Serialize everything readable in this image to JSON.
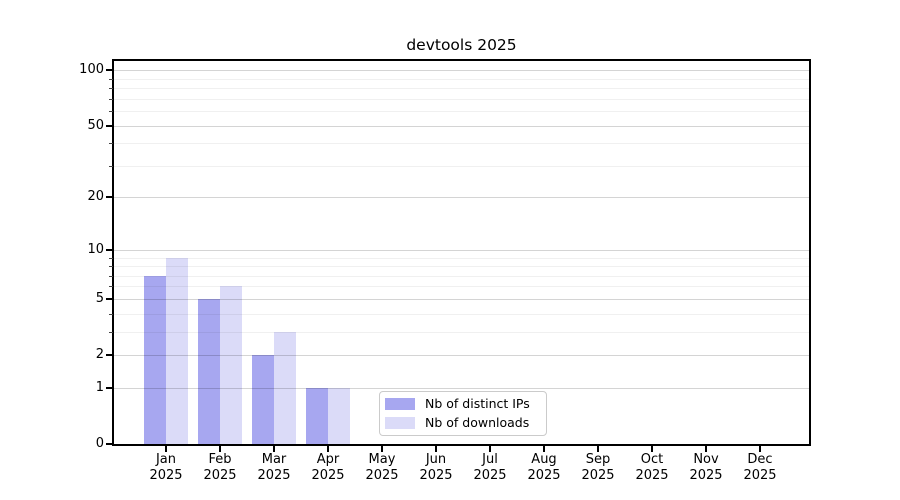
{
  "title": "devtools 2025",
  "chart_data": {
    "type": "bar",
    "title": "devtools 2025",
    "yscale": "log1p",
    "ylim": [
      0,
      113
    ],
    "grid": "horizontal",
    "y_major_ticks": [
      0,
      1,
      2,
      5,
      10,
      20,
      50,
      100
    ],
    "y_minor_gridlines": [
      3,
      4,
      6,
      7,
      8,
      9,
      30,
      40,
      60,
      70,
      80,
      90
    ],
    "categories": [
      {
        "month": "Jan",
        "year": "2025"
      },
      {
        "month": "Feb",
        "year": "2025"
      },
      {
        "month": "Mar",
        "year": "2025"
      },
      {
        "month": "Apr",
        "year": "2025"
      },
      {
        "month": "May",
        "year": "2025"
      },
      {
        "month": "Jun",
        "year": "2025"
      },
      {
        "month": "Jul",
        "year": "2025"
      },
      {
        "month": "Aug",
        "year": "2025"
      },
      {
        "month": "Sep",
        "year": "2025"
      },
      {
        "month": "Oct",
        "year": "2025"
      },
      {
        "month": "Nov",
        "year": "2025"
      },
      {
        "month": "Dec",
        "year": "2025"
      }
    ],
    "series": [
      {
        "name": "Nb of distinct IPs",
        "color": "#a7a7f0",
        "values": [
          7,
          5,
          2,
          1,
          0,
          0,
          0,
          0,
          0,
          0,
          0,
          0
        ]
      },
      {
        "name": "Nb of downloads",
        "color": "#dbdbf8",
        "values": [
          9,
          6,
          3,
          1,
          0,
          0,
          0,
          0,
          0,
          0,
          0,
          0
        ]
      }
    ],
    "legend": {
      "position": "lower-center-inside",
      "items": [
        "Nb of distinct IPs",
        "Nb of downloads"
      ]
    }
  }
}
